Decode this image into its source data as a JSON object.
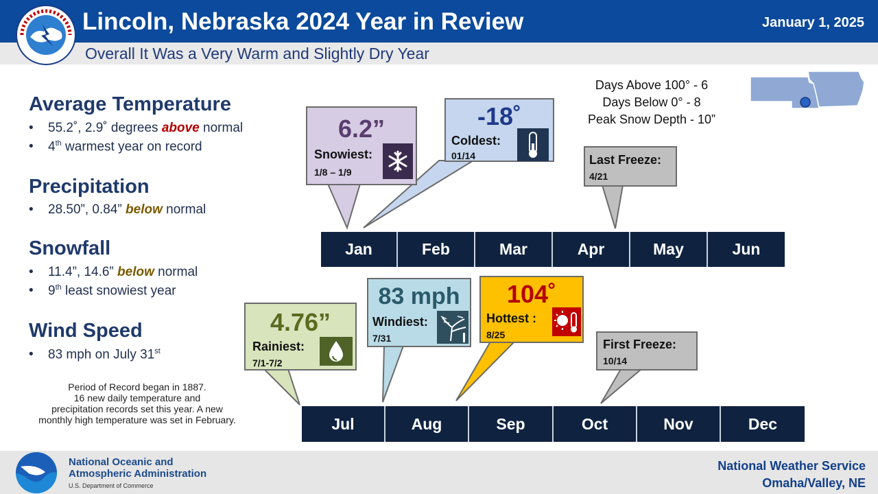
{
  "header": {
    "title": "Lincoln, Nebraska 2024 Year in Review",
    "date": "January  1, 2025",
    "subtitle": "Overall It Was a Very Warm and Slightly Dry Year"
  },
  "stats": {
    "avg_temp": {
      "heading": "Average Temperature",
      "b1_pre": "55.2˚, 2.9˚ degrees ",
      "b1_em": "above",
      "b1_post": " normal",
      "b2_num": "4",
      "b2_sup": "th",
      "b2_post": " warmest year on record"
    },
    "precip": {
      "heading": "Precipitation",
      "b1_pre": "28.50”, 0.84” ",
      "b1_em": "below",
      "b1_post": " normal"
    },
    "snow": {
      "heading": "Snowfall",
      "b1_pre": "11.4”, 14.6” ",
      "b1_em": "below",
      "b1_post": " normal",
      "b2_num": "9",
      "b2_sup": "th",
      "b2_post": " least snowiest year"
    },
    "wind": {
      "heading": "Wind Speed",
      "b1_pre": "83 mph on July 31",
      "b1_sup": "st"
    },
    "bullet": "•",
    "period_note": [
      "Period of Record began in 1887.",
      "16 new daily temperature and",
      "precipitation records set this year.  A new",
      "monthly  high temperature was set in February."
    ]
  },
  "facts": [
    "Days Above 100° - 6",
    "Days Below 0° - 8",
    "Peak Snow Depth - 10”"
  ],
  "months_top": [
    "Jan",
    "Feb",
    "Mar",
    "Apr",
    "May",
    "Jun"
  ],
  "months_bottom": [
    "Jul",
    "Aug",
    "Sep",
    "Oct",
    "Nov",
    "Dec"
  ],
  "callouts": {
    "snowiest": {
      "value": "6.2”",
      "label": "Snowiest:",
      "date": "1/8 – 1/9",
      "icon": "snowflake-icon",
      "color": "#d6cce3"
    },
    "coldest": {
      "value": "-18˚",
      "label": "Coldest:",
      "date": "01/14",
      "icon": "thermometer-cold-icon",
      "color": "#c5d6ee"
    },
    "last_freeze": {
      "label": "Last Freeze:",
      "date": "4/21",
      "color": "#bfbfbf"
    },
    "rainiest": {
      "value": "4.76”",
      "label": "Rainiest:",
      "date": "7/1-7/2",
      "icon": "raindrop-icon",
      "color": "#d8e4bc"
    },
    "windiest": {
      "value": "83 mph",
      "label": "Windiest:",
      "date": "7/31",
      "icon": "wind-tree-icon",
      "color": "#b9dbe7"
    },
    "hottest": {
      "value": "104˚",
      "label": "Hottest :",
      "date": "8/25",
      "icon": "sun-thermometer-icon",
      "color": "#ffc000"
    },
    "first_freeze": {
      "label": "First Freeze:",
      "date": "10/14",
      "color": "#bfbfbf"
    }
  },
  "colors": {
    "value_snow": "#5a3d6e",
    "value_cold": "#1f3a8a",
    "value_rain": "#5a6b1f",
    "value_wind": "#2a5a6a",
    "value_hot": "#b30000"
  },
  "footer": {
    "noaa_line1": "National Oceanic and",
    "noaa_line2": "Atmospheric Administration",
    "noaa_line3": "U.S. Department of Commerce",
    "nws_line1": "National  Weather Service",
    "nws_line2": "Omaha/Valley,  NE"
  }
}
